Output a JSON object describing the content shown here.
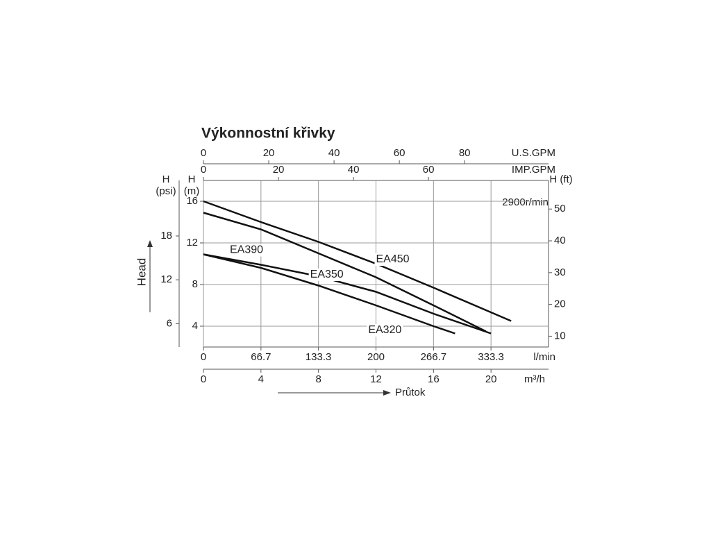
{
  "chart_data": {
    "type": "line",
    "title": "Výkonnostní křivky",
    "annotation": "2900r/min",
    "head_label": "Head",
    "flow_label": "Průtok",
    "xlabel": "m³/h",
    "xlim": [
      0,
      24
    ],
    "xticks": [
      0,
      4,
      8,
      12,
      16,
      20
    ],
    "ylabel": "H (m)",
    "ylim": [
      2,
      18
    ],
    "yticks": [
      4,
      8,
      12,
      16
    ],
    "grid": true,
    "secondary_axes": [
      {
        "label": "l/min",
        "position": "bottom",
        "xlim": [
          0,
          400
        ],
        "xticks": [
          0,
          66.7,
          133.3,
          200,
          266.7,
          333.3
        ]
      },
      {
        "label": "U.S.GPM",
        "position": "top",
        "xlim": [
          0,
          105.7
        ],
        "xticks": [
          0,
          20,
          40,
          60,
          80
        ]
      },
      {
        "label": "IMP.GPM",
        "position": "top",
        "xlim": [
          0,
          92
        ],
        "xticks": [
          0,
          20,
          40,
          60
        ]
      },
      {
        "label": "H (psi)",
        "position": "left",
        "ylim": [
          2.8,
          25.6
        ],
        "yticks": [
          6,
          12,
          18
        ]
      },
      {
        "label": "H (ft)",
        "position": "right",
        "ylim": [
          6.6,
          59
        ],
        "yticks": [
          10,
          20,
          30,
          40,
          50
        ]
      }
    ],
    "series": [
      {
        "name": "EA450",
        "color": "#111111",
        "x": [
          0,
          4,
          8,
          12,
          16,
          21.4
        ],
        "values": [
          16,
          14,
          12.1,
          10,
          7.7,
          4.5
        ]
      },
      {
        "name": "EA390",
        "color": "#111111",
        "x": [
          0,
          4,
          8,
          12,
          16,
          19.65
        ],
        "values": [
          14.9,
          13.3,
          11,
          8.7,
          6,
          3.5
        ]
      },
      {
        "name": "EA350",
        "color": "#111111",
        "x": [
          0,
          4,
          8,
          12,
          16,
          20
        ],
        "values": [
          10.9,
          9.9,
          8.8,
          7.3,
          5.2,
          3.3
        ]
      },
      {
        "name": "EA320",
        "color": "#111111",
        "x": [
          0,
          4,
          8,
          12,
          16,
          17.5
        ],
        "values": [
          10.9,
          9.6,
          7.9,
          6,
          4,
          3.3
        ]
      }
    ]
  }
}
